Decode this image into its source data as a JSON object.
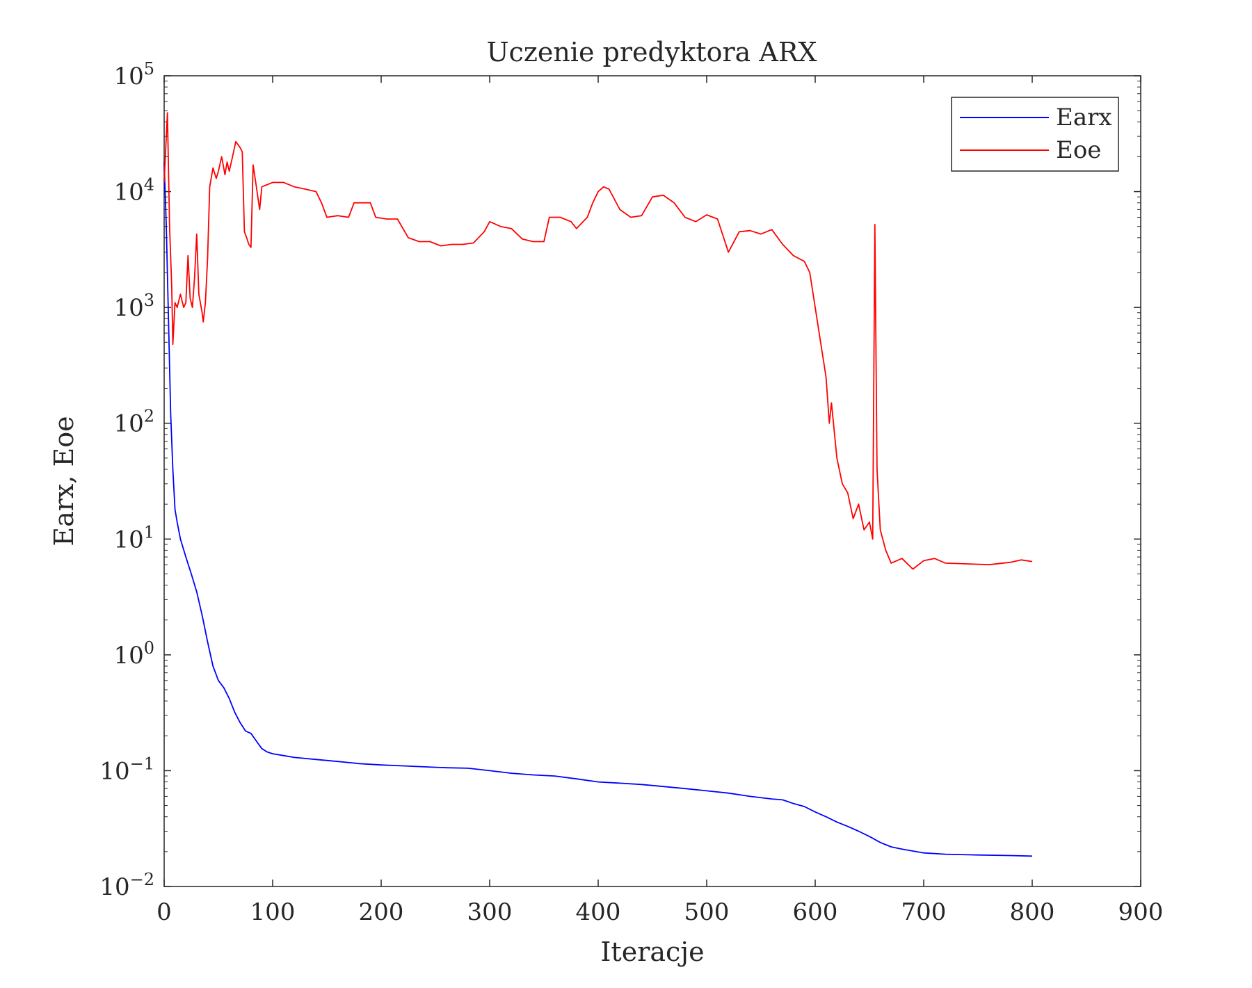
{
  "chart_data": {
    "type": "line",
    "title": "Uczenie predyktora ARX",
    "xlabel": "Iteracje",
    "ylabel": "Earx, Eoe",
    "xlim": [
      0,
      900
    ],
    "ylim": [
      0.01,
      100000
    ],
    "y_scale": "log",
    "x_ticks": [
      0,
      100,
      200,
      300,
      400,
      500,
      600,
      700,
      800,
      900
    ],
    "y_ticks": [
      {
        "value": 0.01,
        "base": "10",
        "exp": "−2"
      },
      {
        "value": 0.1,
        "base": "10",
        "exp": "−1"
      },
      {
        "value": 1,
        "base": "10",
        "exp": "0"
      },
      {
        "value": 10,
        "base": "10",
        "exp": "1"
      },
      {
        "value": 100,
        "base": "10",
        "exp": "2"
      },
      {
        "value": 1000,
        "base": "10",
        "exp": "3"
      },
      {
        "value": 10000,
        "base": "10",
        "exp": "4"
      },
      {
        "value": 100000,
        "base": "10",
        "exp": "5"
      }
    ],
    "grid": false,
    "legend_position": "top-right",
    "series": [
      {
        "name": "Earx",
        "color": "#0000ff",
        "points": [
          [
            0,
            18000
          ],
          [
            2,
            5000
          ],
          [
            4,
            800
          ],
          [
            6,
            120
          ],
          [
            8,
            40
          ],
          [
            10,
            18
          ],
          [
            12,
            14
          ],
          [
            15,
            10
          ],
          [
            20,
            7
          ],
          [
            25,
            5
          ],
          [
            30,
            3.5
          ],
          [
            35,
            2.2
          ],
          [
            40,
            1.3
          ],
          [
            45,
            0.8
          ],
          [
            50,
            0.6
          ],
          [
            55,
            0.52
          ],
          [
            60,
            0.42
          ],
          [
            65,
            0.32
          ],
          [
            70,
            0.26
          ],
          [
            75,
            0.22
          ],
          [
            80,
            0.21
          ],
          [
            85,
            0.18
          ],
          [
            90,
            0.155
          ],
          [
            95,
            0.145
          ],
          [
            100,
            0.14
          ],
          [
            110,
            0.135
          ],
          [
            120,
            0.13
          ],
          [
            140,
            0.125
          ],
          [
            160,
            0.12
          ],
          [
            180,
            0.115
          ],
          [
            200,
            0.112
          ],
          [
            220,
            0.11
          ],
          [
            240,
            0.108
          ],
          [
            260,
            0.106
          ],
          [
            280,
            0.105
          ],
          [
            300,
            0.1
          ],
          [
            320,
            0.095
          ],
          [
            340,
            0.092
          ],
          [
            360,
            0.09
          ],
          [
            380,
            0.085
          ],
          [
            400,
            0.08
          ],
          [
            420,
            0.078
          ],
          [
            440,
            0.076
          ],
          [
            460,
            0.073
          ],
          [
            480,
            0.07
          ],
          [
            500,
            0.067
          ],
          [
            520,
            0.064
          ],
          [
            540,
            0.06
          ],
          [
            560,
            0.057
          ],
          [
            570,
            0.056
          ],
          [
            580,
            0.052
          ],
          [
            590,
            0.049
          ],
          [
            600,
            0.044
          ],
          [
            610,
            0.04
          ],
          [
            620,
            0.036
          ],
          [
            630,
            0.033
          ],
          [
            640,
            0.03
          ],
          [
            650,
            0.027
          ],
          [
            660,
            0.024
          ],
          [
            670,
            0.022
          ],
          [
            680,
            0.021
          ],
          [
            700,
            0.0195
          ],
          [
            720,
            0.019
          ],
          [
            750,
            0.0187
          ],
          [
            780,
            0.0185
          ],
          [
            800,
            0.0183
          ]
        ]
      },
      {
        "name": "Eoe",
        "color": "#ff0000",
        "points": [
          [
            0,
            12000
          ],
          [
            2,
            30000
          ],
          [
            3,
            48000
          ],
          [
            5,
            5000
          ],
          [
            7,
            1500
          ],
          [
            8,
            480
          ],
          [
            10,
            1100
          ],
          [
            12,
            1000
          ],
          [
            15,
            1300
          ],
          [
            18,
            1000
          ],
          [
            20,
            1100
          ],
          [
            22,
            2800
          ],
          [
            24,
            1200
          ],
          [
            26,
            1000
          ],
          [
            28,
            1800
          ],
          [
            30,
            4300
          ],
          [
            32,
            1300
          ],
          [
            35,
            900
          ],
          [
            36,
            750
          ],
          [
            38,
            1100
          ],
          [
            40,
            2600
          ],
          [
            42,
            11000
          ],
          [
            45,
            16000
          ],
          [
            48,
            13000
          ],
          [
            50,
            15000
          ],
          [
            53,
            20000
          ],
          [
            56,
            14000
          ],
          [
            58,
            18000
          ],
          [
            60,
            15000
          ],
          [
            63,
            20000
          ],
          [
            66,
            27000
          ],
          [
            70,
            24000
          ],
          [
            72,
            22000
          ],
          [
            74,
            4500
          ],
          [
            76,
            4000
          ],
          [
            78,
            3500
          ],
          [
            80,
            3300
          ],
          [
            82,
            17000
          ],
          [
            85,
            11000
          ],
          [
            88,
            7000
          ],
          [
            90,
            11000
          ],
          [
            100,
            12000
          ],
          [
            110,
            12000
          ],
          [
            120,
            11000
          ],
          [
            130,
            10500
          ],
          [
            140,
            10000
          ],
          [
            145,
            8000
          ],
          [
            150,
            6000
          ],
          [
            160,
            6200
          ],
          [
            170,
            6000
          ],
          [
            175,
            8000
          ],
          [
            180,
            8000
          ],
          [
            190,
            8000
          ],
          [
            195,
            6000
          ],
          [
            205,
            5800
          ],
          [
            215,
            5800
          ],
          [
            225,
            4000
          ],
          [
            235,
            3700
          ],
          [
            245,
            3700
          ],
          [
            255,
            3400
          ],
          [
            265,
            3500
          ],
          [
            275,
            3500
          ],
          [
            285,
            3600
          ],
          [
            295,
            4500
          ],
          [
            300,
            5500
          ],
          [
            310,
            5000
          ],
          [
            320,
            4800
          ],
          [
            330,
            3900
          ],
          [
            340,
            3700
          ],
          [
            350,
            3700
          ],
          [
            355,
            6000
          ],
          [
            365,
            6000
          ],
          [
            375,
            5500
          ],
          [
            380,
            4800
          ],
          [
            390,
            6000
          ],
          [
            395,
            8000
          ],
          [
            400,
            10000
          ],
          [
            405,
            11000
          ],
          [
            410,
            10500
          ],
          [
            420,
            7000
          ],
          [
            430,
            6000
          ],
          [
            440,
            6200
          ],
          [
            450,
            9000
          ],
          [
            460,
            9300
          ],
          [
            470,
            8000
          ],
          [
            480,
            6000
          ],
          [
            490,
            5500
          ],
          [
            500,
            6300
          ],
          [
            510,
            5800
          ],
          [
            520,
            3000
          ],
          [
            530,
            4500
          ],
          [
            540,
            4600
          ],
          [
            550,
            4300
          ],
          [
            560,
            4700
          ],
          [
            570,
            3500
          ],
          [
            580,
            2800
          ],
          [
            590,
            2500
          ],
          [
            595,
            2000
          ],
          [
            600,
            1000
          ],
          [
            605,
            500
          ],
          [
            610,
            250
          ],
          [
            613,
            100
          ],
          [
            615,
            150
          ],
          [
            620,
            50
          ],
          [
            625,
            30
          ],
          [
            630,
            25
          ],
          [
            635,
            15
          ],
          [
            640,
            20
          ],
          [
            645,
            12
          ],
          [
            650,
            14
          ],
          [
            653,
            10
          ],
          [
            655,
            5200
          ],
          [
            657,
            40
          ],
          [
            660,
            12
          ],
          [
            665,
            8
          ],
          [
            670,
            6.2
          ],
          [
            680,
            6.8
          ],
          [
            690,
            5.5
          ],
          [
            700,
            6.5
          ],
          [
            710,
            6.8
          ],
          [
            720,
            6.2
          ],
          [
            740,
            6.1
          ],
          [
            760,
            6.0
          ],
          [
            780,
            6.3
          ],
          [
            790,
            6.6
          ],
          [
            800,
            6.4
          ]
        ]
      }
    ]
  }
}
